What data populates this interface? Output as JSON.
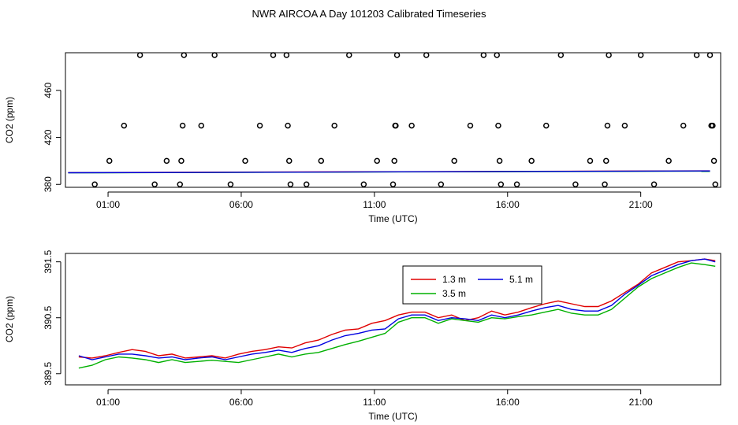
{
  "title": "NWR AIRCOA A  Day 101203  Calibrated Timeseries",
  "colors": {
    "h13": "#e00000",
    "h35": "#00b000",
    "h51": "#0000e0",
    "marker": "#000000",
    "axis": "#000000"
  },
  "chart_data": [
    {
      "id": "top",
      "type": "scatter+line",
      "xlabel": "Time (UTC)",
      "ylabel": "CO2 (ppm)",
      "xlim": [
        -0.6,
        24.0
      ],
      "ylim": [
        377.5,
        492
      ],
      "xticks": [
        1,
        6,
        11,
        16,
        21
      ],
      "xtick_labels": [
        "01:00",
        "06:00",
        "11:00",
        "16:00",
        "21:00"
      ],
      "yticks": [
        380,
        420,
        460
      ],
      "ytick_labels": [
        "380",
        "420",
        "460"
      ],
      "markers": [
        [
          0.5,
          380
        ],
        [
          1.05,
          400
        ],
        [
          1.6,
          430
        ],
        [
          2.2,
          490
        ],
        [
          2.75,
          380
        ],
        [
          3.2,
          400
        ],
        [
          3.7,
          380
        ],
        [
          3.75,
          400
        ],
        [
          3.8,
          430
        ],
        [
          3.85,
          490
        ],
        [
          4.5,
          430
        ],
        [
          5.0,
          490
        ],
        [
          5.6,
          380
        ],
        [
          6.15,
          400
        ],
        [
          6.7,
          430
        ],
        [
          7.2,
          490
        ],
        [
          7.7,
          490
        ],
        [
          7.75,
          430
        ],
        [
          7.8,
          400
        ],
        [
          7.85,
          380
        ],
        [
          8.45,
          380
        ],
        [
          9.0,
          400
        ],
        [
          9.5,
          430
        ],
        [
          10.05,
          490
        ],
        [
          10.6,
          380
        ],
        [
          11.1,
          400
        ],
        [
          11.7,
          380
        ],
        [
          11.75,
          400
        ],
        [
          11.78,
          430
        ],
        [
          11.8,
          430
        ],
        [
          11.85,
          490
        ],
        [
          12.4,
          430
        ],
        [
          12.95,
          490
        ],
        [
          13.5,
          380
        ],
        [
          14.0,
          400
        ],
        [
          14.6,
          430
        ],
        [
          15.1,
          490
        ],
        [
          15.6,
          490
        ],
        [
          15.65,
          430
        ],
        [
          15.7,
          400
        ],
        [
          15.75,
          380
        ],
        [
          16.35,
          380
        ],
        [
          16.9,
          400
        ],
        [
          17.45,
          430
        ],
        [
          18.0,
          490
        ],
        [
          18.55,
          380
        ],
        [
          19.1,
          400
        ],
        [
          19.65,
          380
        ],
        [
          19.7,
          400
        ],
        [
          19.75,
          430
        ],
        [
          19.8,
          490
        ],
        [
          20.4,
          430
        ],
        [
          21.0,
          490
        ],
        [
          21.5,
          380
        ],
        [
          22.05,
          400
        ],
        [
          22.6,
          430
        ],
        [
          23.1,
          490
        ],
        [
          23.6,
          490
        ],
        [
          23.65,
          430
        ],
        [
          23.7,
          430
        ],
        [
          23.75,
          400
        ],
        [
          23.8,
          380
        ]
      ],
      "series": [
        {
          "name": "1.3 m",
          "x": [
            -0.5,
            23.6
          ],
          "values": [
            390.0,
            391.5
          ]
        },
        {
          "name": "3.5 m",
          "x": [
            -0.5,
            23.6
          ],
          "values": [
            389.8,
            391.3
          ]
        },
        {
          "name": "5.1 m",
          "x": [
            -0.5,
            23.6
          ],
          "values": [
            389.9,
            391.4
          ]
        }
      ]
    },
    {
      "id": "bottom",
      "type": "line",
      "xlabel": "Time (UTC)",
      "ylabel": "CO2 (ppm)",
      "xlim": [
        -0.6,
        24.0
      ],
      "ylim": [
        389.3,
        391.65
      ],
      "xticks": [
        1,
        6,
        11,
        16,
        21
      ],
      "xtick_labels": [
        "01:00",
        "06:00",
        "11:00",
        "16:00",
        "21:00"
      ],
      "yticks": [
        389.5,
        390.5,
        391.5
      ],
      "ytick_labels": [
        "389.5",
        "390.5",
        "391.5"
      ],
      "legend": {
        "position": "top-center",
        "entries": [
          "1.3 m",
          "5.1 m",
          "3.5 m"
        ]
      },
      "x": [
        -0.1,
        0.4,
        0.9,
        1.4,
        1.9,
        2.4,
        2.9,
        3.4,
        3.9,
        4.4,
        4.9,
        5.4,
        5.9,
        6.4,
        6.9,
        7.4,
        7.9,
        8.4,
        8.9,
        9.4,
        9.9,
        10.4,
        10.9,
        11.4,
        11.9,
        12.4,
        12.9,
        13.4,
        13.9,
        14.4,
        14.9,
        15.4,
        15.9,
        16.4,
        16.9,
        17.4,
        17.9,
        18.4,
        18.9,
        19.4,
        19.9,
        20.4,
        20.9,
        21.4,
        21.9,
        22.4,
        22.9,
        23.4,
        23.8
      ],
      "series": [
        {
          "name": "1.3 m",
          "values": [
            389.8,
            389.78,
            389.82,
            389.88,
            389.93,
            389.9,
            389.82,
            389.85,
            389.78,
            389.8,
            389.82,
            389.78,
            389.85,
            389.9,
            389.93,
            389.98,
            389.96,
            390.05,
            390.1,
            390.2,
            390.28,
            390.3,
            390.4,
            390.45,
            390.55,
            390.6,
            390.6,
            390.5,
            390.55,
            390.45,
            390.5,
            390.62,
            390.55,
            390.6,
            390.68,
            390.75,
            390.8,
            390.75,
            390.7,
            390.7,
            390.8,
            390.95,
            391.1,
            391.3,
            391.4,
            391.5,
            391.52,
            391.55,
            391.52
          ]
        },
        {
          "name": "3.5 m",
          "values": [
            389.6,
            389.65,
            389.75,
            389.8,
            389.78,
            389.75,
            389.7,
            389.75,
            389.7,
            389.72,
            389.74,
            389.72,
            389.7,
            389.75,
            389.8,
            389.85,
            389.8,
            389.85,
            389.88,
            389.95,
            390.02,
            390.08,
            390.15,
            390.22,
            390.42,
            390.5,
            390.5,
            390.4,
            390.48,
            390.45,
            390.42,
            390.5,
            390.48,
            390.52,
            390.55,
            390.6,
            390.65,
            390.58,
            390.55,
            390.55,
            390.65,
            390.85,
            391.05,
            391.2,
            391.3,
            391.4,
            391.48,
            391.45,
            391.42
          ]
        },
        {
          "name": "5.1 m",
          "values": [
            389.82,
            389.75,
            389.8,
            389.85,
            389.85,
            389.82,
            389.78,
            389.8,
            389.75,
            389.78,
            389.8,
            389.75,
            389.8,
            389.85,
            389.88,
            389.92,
            389.88,
            389.95,
            390.0,
            390.1,
            390.18,
            390.22,
            390.28,
            390.3,
            390.48,
            390.55,
            390.55,
            390.45,
            390.5,
            390.48,
            390.45,
            390.55,
            390.5,
            390.55,
            390.62,
            390.68,
            390.72,
            390.65,
            390.62,
            390.62,
            390.72,
            390.92,
            391.08,
            391.25,
            391.35,
            391.45,
            391.52,
            391.55,
            391.5
          ]
        }
      ]
    }
  ]
}
